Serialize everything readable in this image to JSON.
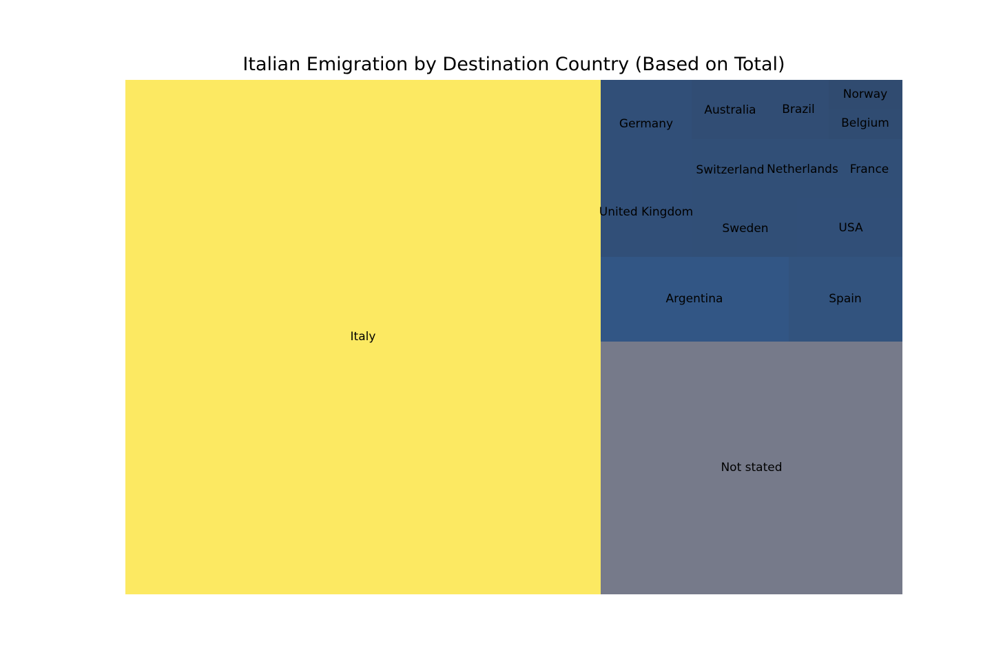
{
  "chart_data": {
    "type": "treemap",
    "title": "Italian Emigration by Destination Country (Based on Total)",
    "nodes": [
      {
        "label": "Italy",
        "color": "#fce962"
      },
      {
        "label": "Not stated",
        "color": "#767a8a"
      },
      {
        "label": "Argentina",
        "color": "#325685"
      },
      {
        "label": "Spain",
        "color": "#32537e"
      },
      {
        "label": "Germany",
        "color": "#314f78"
      },
      {
        "label": "United Kingdom",
        "color": "#314f78"
      },
      {
        "label": "Australia",
        "color": "#314d74"
      },
      {
        "label": "Brazil",
        "color": "#314d74"
      },
      {
        "label": "Norway",
        "color": "#304b70"
      },
      {
        "label": "Belgium",
        "color": "#304c72"
      },
      {
        "label": "Switzerland",
        "color": "#314f77"
      },
      {
        "label": "Netherlands",
        "color": "#314f77"
      },
      {
        "label": "France",
        "color": "#314f77"
      },
      {
        "label": "Sweden",
        "color": "#314f77"
      },
      {
        "label": "USA",
        "color": "#314f78"
      }
    ]
  }
}
